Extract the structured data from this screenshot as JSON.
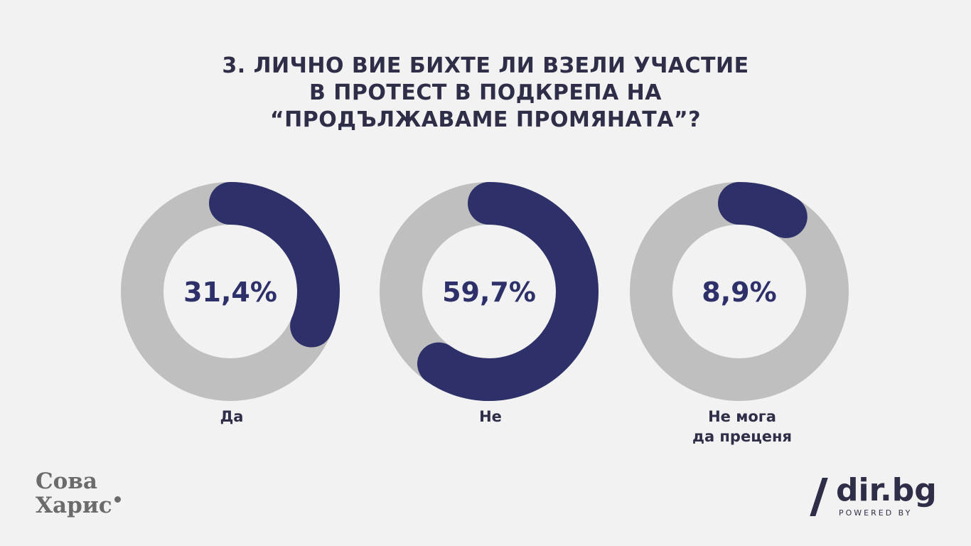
{
  "title_lines": [
    "3. ЛИЧНО ВИЕ БИХТЕ ЛИ ВЗЕЛИ УЧАСТИЕ",
    "В ПРОТЕСТ В ПОДКРЕПА НА",
    "“ПРОДЪЛЖАВАМЕ ПРОМЯНАТА”?"
  ],
  "chart_data": {
    "type": "pie",
    "style": "donut",
    "title": "3. ЛИЧНО ВИЕ БИХТЕ ЛИ ВЗЕЛИ УЧАСТИЕ В ПРОТЕСТ В ПОДКРЕПА НА “ПРОДЪЛЖАВАМЕ ПРОМЯНАТА”?",
    "unit": "%",
    "slices": [
      {
        "label_lines": [
          "Да"
        ],
        "value": 31.4,
        "value_label": "31,4%"
      },
      {
        "label_lines": [
          "Не"
        ],
        "value": 59.7,
        "value_label": "59,7%"
      },
      {
        "label_lines": [
          "Не мога",
          "да преценя"
        ],
        "value": 8.9,
        "value_label": "8,9%"
      }
    ],
    "colors": {
      "value": "#2e3069",
      "track": "#bfbfbf",
      "center": "#f2f2f2",
      "text": "#2e3069"
    },
    "legend": "none",
    "grid": false
  },
  "logos": {
    "left_logo": {
      "line1": "Сова",
      "line2": "Харис"
    },
    "right_logo": {
      "name": "dir.bg",
      "tagline": "POWERED BY"
    }
  }
}
